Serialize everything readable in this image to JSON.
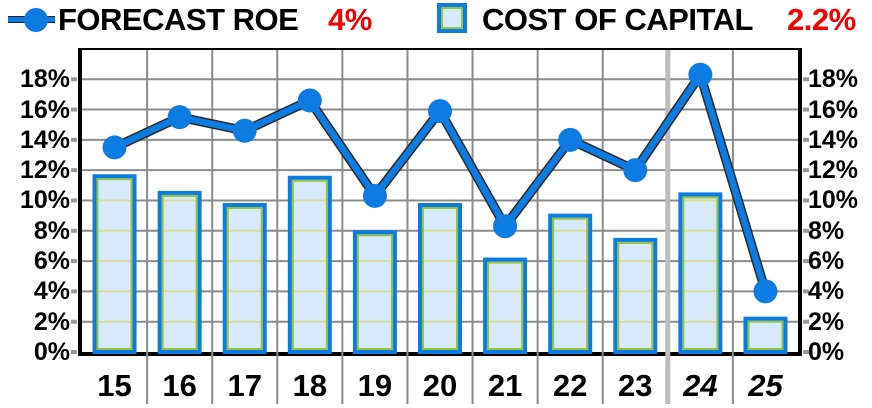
{
  "legend": {
    "series1": {
      "label": "FORECAST ROE",
      "value": "4%"
    },
    "series2": {
      "label": "COST OF CAPITAL",
      "value": "2.2%"
    }
  },
  "colors": {
    "blue": "#0d7ce2",
    "line_edge": "#2a2a2a",
    "bar_fill": "#d7eafc",
    "bar_inner_border": "#96c43c",
    "bar_grid": "#d9dd9b",
    "grid": "#8c8c8c",
    "divider": "#bcbcbc",
    "tick": "#9a9a9a",
    "axis": "#000000",
    "value_red": "#f40000"
  },
  "chart_data": {
    "type": "combo_bar_line",
    "title": "",
    "categories": [
      "15",
      "16",
      "17",
      "18",
      "19",
      "20",
      "21",
      "22",
      "23",
      "24",
      "25"
    ],
    "italic_categories": [
      "24",
      "25"
    ],
    "divider_after_category": "23",
    "series": [
      {
        "name": "FORECAST ROE",
        "type": "line",
        "values": [
          13.5,
          15.5,
          14.6,
          16.6,
          10.3,
          15.9,
          8.3,
          14.0,
          12.0,
          18.3,
          4.0
        ]
      },
      {
        "name": "COST OF CAPITAL",
        "type": "bar",
        "values": [
          11.6,
          10.5,
          9.7,
          11.5,
          7.9,
          9.7,
          6.1,
          9.0,
          7.4,
          10.4,
          2.2
        ]
      }
    ],
    "y_ticks": [
      "0%",
      "2%",
      "4%",
      "6%",
      "8%",
      "10%",
      "12%",
      "14%",
      "16%",
      "18%"
    ],
    "y_tick_step": 2,
    "y_axis_max": 19.93,
    "y_axis_sides": "both",
    "grid": true,
    "legend_position": "top"
  }
}
